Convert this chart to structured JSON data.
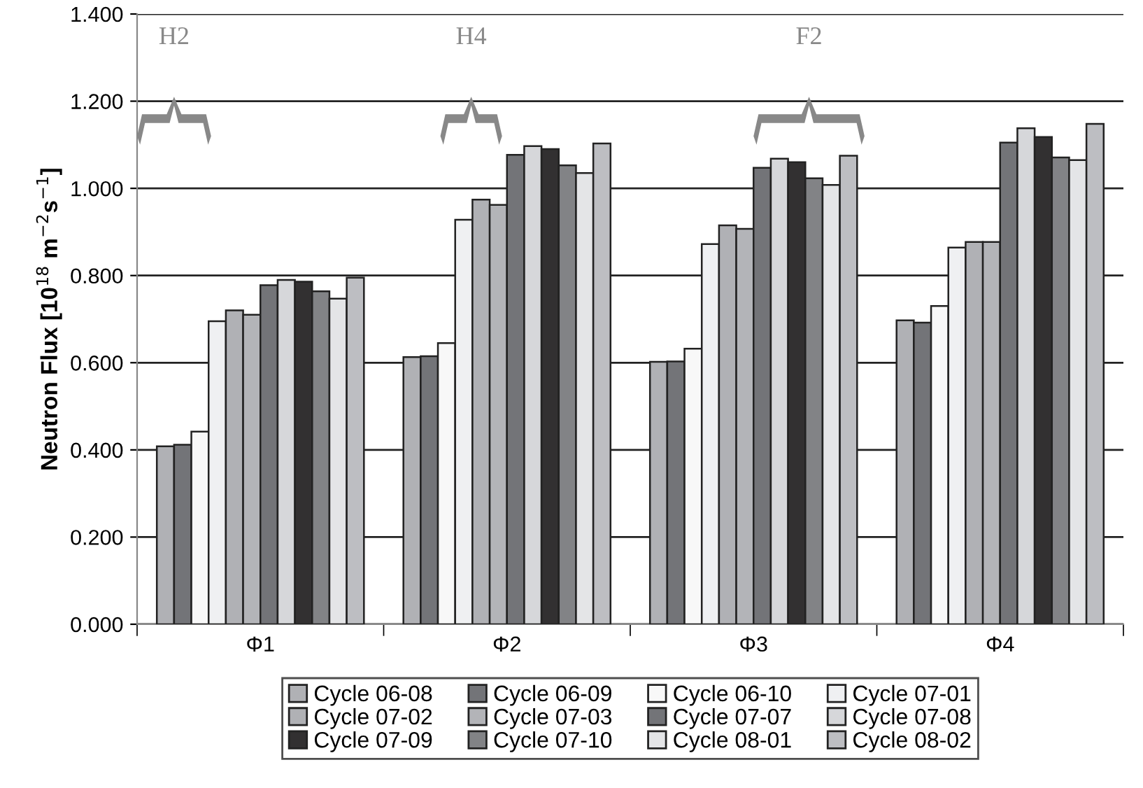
{
  "chart_data": {
    "type": "bar",
    "ylabel": "Neutron Flux [10$^{18}$ m$^{−2}$s$^{−1}$]",
    "categories": [
      "Φ1",
      "Φ2",
      "Φ3",
      "Φ4"
    ],
    "series": [
      {
        "name": "Cycle 06-08",
        "color": "#b0b1b5",
        "values": [
          0.408,
          0.613,
          0.602,
          0.697
        ]
      },
      {
        "name": "Cycle 06-09",
        "color": "#737478",
        "values": [
          0.412,
          0.615,
          0.603,
          0.692
        ]
      },
      {
        "name": "Cycle 06-10",
        "color": "#f8f8f8",
        "values": [
          0.442,
          0.645,
          0.632,
          0.73
        ]
      },
      {
        "name": "Cycle 07-01",
        "color": "#eff0f2",
        "values": [
          0.695,
          0.928,
          0.872,
          0.864
        ]
      },
      {
        "name": "Cycle 07-02",
        "color": "#b0b1b5",
        "values": [
          0.72,
          0.974,
          0.915,
          0.877
        ]
      },
      {
        "name": "Cycle 07-03",
        "color": "#b3b4b8",
        "values": [
          0.71,
          0.962,
          0.907,
          0.877
        ]
      },
      {
        "name": "Cycle 07-07",
        "color": "#737478",
        "values": [
          0.778,
          1.077,
          1.047,
          1.105
        ]
      },
      {
        "name": "Cycle 07-08",
        "color": "#d6d7da",
        "values": [
          0.79,
          1.097,
          1.068,
          1.138
        ]
      },
      {
        "name": "Cycle 07-09",
        "color": "#323031",
        "values": [
          0.786,
          1.09,
          1.06,
          1.118
        ]
      },
      {
        "name": "Cycle 07-10",
        "color": "#828386",
        "values": [
          0.764,
          1.053,
          1.023,
          1.071
        ]
      },
      {
        "name": "Cycle 08-01",
        "color": "#e4e5e7",
        "values": [
          0.747,
          1.035,
          1.008,
          1.065
        ]
      },
      {
        "name": "Cycle 08-02",
        "color": "#bdbec2",
        "values": [
          0.795,
          1.103,
          1.075,
          1.148
        ]
      }
    ],
    "ylim": [
      0,
      1.4
    ],
    "yticks": [
      {
        "value": 0,
        "label": "0.000"
      },
      {
        "value": 0.2,
        "label": "0.200"
      },
      {
        "value": 0.4,
        "label": "0.400"
      },
      {
        "value": 0.6,
        "label": "0.600"
      },
      {
        "value": 0.8,
        "label": "0.800"
      },
      {
        "value": 1.0,
        "label": "1.000"
      },
      {
        "value": 1.2,
        "label": "1.200"
      },
      {
        "value": 1.4,
        "label": "1.400"
      }
    ],
    "annotations": [
      "H2",
      "H4",
      "F2"
    ],
    "grid": "y",
    "legend": "bottom"
  }
}
